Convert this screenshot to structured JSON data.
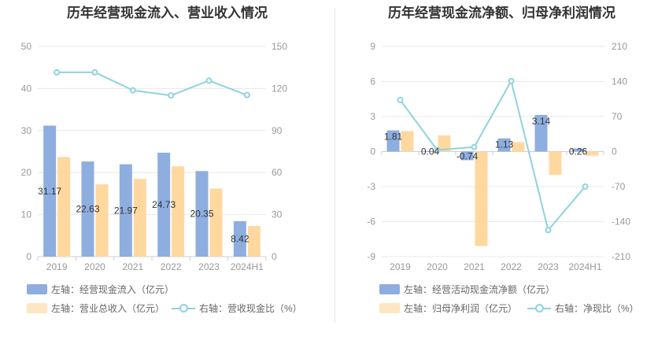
{
  "colors": {
    "bar_primary": "#8eaee0",
    "bar_secondary": "#ffd8a0",
    "line": "#8fd3de",
    "grid": "#e8e8e8",
    "axis_text": "#999999"
  },
  "chart_data": [
    {
      "type": "bar",
      "title": "历年经营现金流入、营业收入情况",
      "categories": [
        "2019",
        "2020",
        "2021",
        "2022",
        "2023",
        "2024H1"
      ],
      "left_axis": {
        "ylim": [
          0,
          50
        ],
        "ticks": [
          0,
          10,
          20,
          30,
          40,
          50
        ]
      },
      "right_axis": {
        "ylim": [
          0,
          150
        ],
        "ticks": [
          0,
          30,
          60,
          90,
          120,
          150
        ]
      },
      "series": [
        {
          "name": "左轴：经营现金流入（亿元）",
          "kind": "bar",
          "axis": "left",
          "values": [
            31.17,
            22.63,
            21.97,
            24.73,
            20.35,
            8.42
          ],
          "labels": [
            "31.17",
            "22.63",
            "21.97",
            "24.73",
            "20.35",
            "8.42"
          ]
        },
        {
          "name": "左轴：营业总收入（亿元）",
          "kind": "bar",
          "axis": "left",
          "values": [
            23.7,
            17.2,
            18.5,
            21.5,
            16.2,
            7.3
          ]
        },
        {
          "name": "右轴：营收现金比（%）",
          "kind": "line",
          "axis": "right",
          "values": [
            131.5,
            131.5,
            118.7,
            115.0,
            125.6,
            115.3
          ]
        }
      ]
    },
    {
      "type": "bar",
      "title": "历年经营现金流净额、归母净利润情况",
      "categories": [
        "2019",
        "2020",
        "2021",
        "2022",
        "2023",
        "2024H1"
      ],
      "left_axis": {
        "ylim": [
          -9,
          9
        ],
        "ticks": [
          -9,
          -6,
          -3,
          0,
          3,
          6,
          9
        ]
      },
      "right_axis": {
        "ylim": [
          -210,
          210
        ],
        "ticks": [
          -210,
          -140,
          -70,
          0,
          70,
          140,
          210
        ]
      },
      "series": [
        {
          "name": "左轴：经营活动现金流净额（亿元）",
          "kind": "bar",
          "axis": "left",
          "values": [
            1.81,
            0.04,
            -0.74,
            1.13,
            3.14,
            0.26
          ],
          "labels": [
            "1.81",
            "0.04",
            "-0.74",
            "1.13",
            "3.14",
            "0.26"
          ]
        },
        {
          "name": "左轴：归母净利润（亿元）",
          "kind": "bar",
          "axis": "left",
          "values": [
            1.75,
            1.38,
            -8.1,
            0.8,
            -2.0,
            -0.35
          ]
        },
        {
          "name": "右轴：净现比（%）",
          "kind": "line",
          "axis": "right",
          "values": [
            103,
            3,
            9,
            141,
            -157,
            -70
          ]
        }
      ]
    }
  ]
}
